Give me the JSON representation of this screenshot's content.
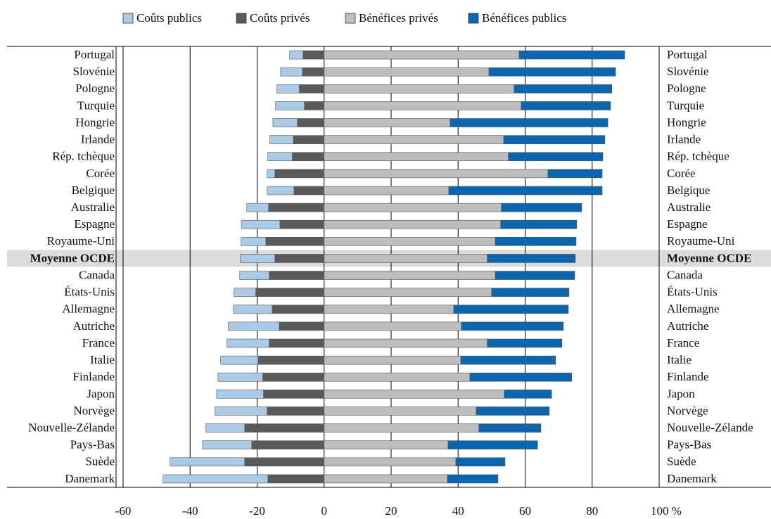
{
  "chart_data": {
    "type": "diverging_stacked_bar",
    "categories": [
      "Portugal",
      "Slovénie",
      "Pologne",
      "Turquie",
      "Hongrie",
      "Irlande",
      "Rép. tchèque",
      "Corée",
      "Belgique",
      "Australie",
      "Espagne",
      "Royaume-Uni",
      "Moyenne OCDE",
      "Canada",
      "États-Unis",
      "Allemagne",
      "Autriche",
      "France",
      "Italie",
      "Finlande",
      "Japon",
      "Norvège",
      "Nouvelle-Zélande",
      "Pays-Bas",
      "Suède",
      "Danemark"
    ],
    "series": [
      {
        "name": "Coûts publics",
        "color": "#a9cbe8",
        "values": [
          -4.0,
          -6.5,
          -6.7,
          -8.6,
          -7.3,
          -7.0,
          -7.3,
          -2.3,
          -8.0,
          -6.5,
          -11.5,
          -7.4,
          -10.3,
          -8.8,
          -6.5,
          -11.6,
          -15.2,
          -12.6,
          -11.2,
          -13.4,
          -14.0,
          -15.6,
          -11.6,
          -14.7,
          -22.3,
          -31.3
        ]
      },
      {
        "name": "Coûts privés",
        "color": "#5a5a5a",
        "values": [
          -6.3,
          -6.5,
          -7.4,
          -5.9,
          -8.0,
          -9.2,
          -9.5,
          -14.7,
          -9.0,
          -16.6,
          -13.2,
          -17.4,
          -14.7,
          -16.4,
          -20.4,
          -15.5,
          -13.4,
          -16.4,
          -19.7,
          -18.3,
          -18.1,
          -17.0,
          -23.7,
          -21.6,
          -23.7,
          -16.8
        ]
      },
      {
        "name": "Bénéfices privés",
        "color": "#bdbdbd",
        "values": [
          58.2,
          49.2,
          56.7,
          58.8,
          37.6,
          53.6,
          55.0,
          66.8,
          37.2,
          52.9,
          52.7,
          51.1,
          48.7,
          51.1,
          50.0,
          38.7,
          41.0,
          48.7,
          40.8,
          43.5,
          53.8,
          45.4,
          46.2,
          37.0,
          39.3,
          36.8
        ]
      },
      {
        "name": "Bénéfices publics",
        "color": "#0a66b1",
        "values": [
          31.5,
          37.8,
          29.2,
          26.7,
          47.1,
          30.2,
          28.2,
          16.2,
          45.8,
          24.0,
          22.7,
          24.1,
          26.3,
          23.7,
          23.1,
          34.2,
          30.4,
          22.3,
          28.3,
          30.4,
          14.1,
          21.8,
          18.5,
          26.7,
          14.7,
          15.1
        ]
      }
    ],
    "highlight": "Moyenne OCDE",
    "xlim": [
      -60,
      100
    ],
    "xticks": [
      -60,
      -40,
      -20,
      0,
      20,
      40,
      60,
      80,
      {
        "value": 100,
        "label": "100 %"
      }
    ],
    "grid": true
  }
}
